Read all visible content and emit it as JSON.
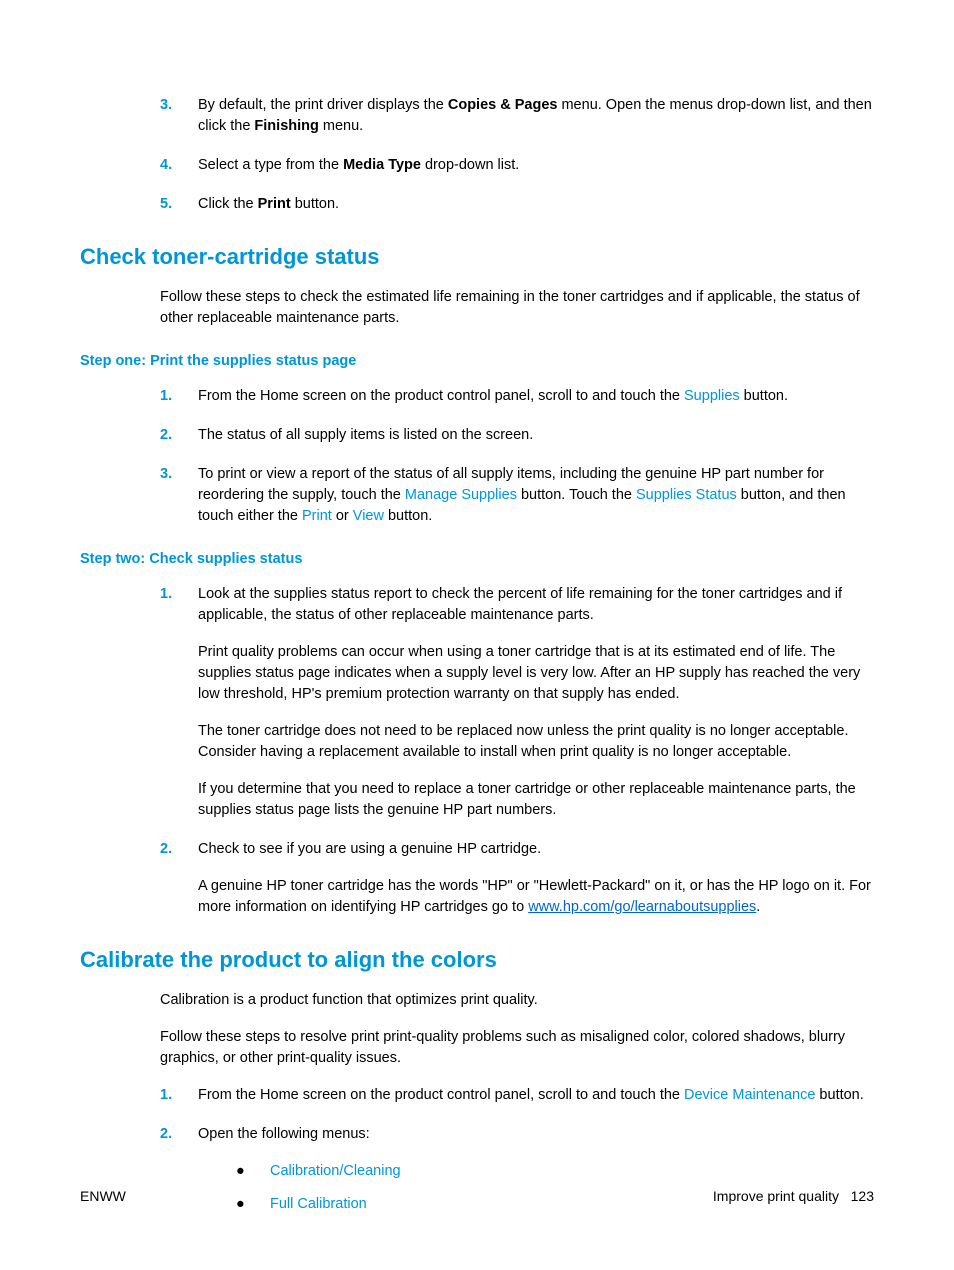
{
  "steps_top": {
    "3": {
      "num": "3.",
      "pre1": "By default, the print driver displays the ",
      "bold1": "Copies & Pages",
      "mid1": " menu. Open the menus drop-down list, and then click the ",
      "bold2": "Finishing",
      "post1": " menu."
    },
    "4": {
      "num": "4.",
      "pre1": "Select a type from the ",
      "bold1": "Media Type",
      "post1": " drop-down list."
    },
    "5": {
      "num": "5.",
      "pre1": "Click the ",
      "bold1": "Print",
      "post1": " button."
    }
  },
  "section1": {
    "title": "Check toner-cartridge status",
    "intro": "Follow these steps to check the estimated life remaining in the toner cartridges and if applicable, the status of other replaceable maintenance parts.",
    "step1_title": "Step one: Print the supplies status page",
    "step1": {
      "1": {
        "num": "1.",
        "pre": "From the Home screen on the product control panel, scroll to and touch the ",
        "ui": "Supplies",
        "post": " button."
      },
      "2": {
        "num": "2.",
        "text": "The status of all supply items is listed on the screen."
      },
      "3": {
        "num": "3.",
        "pre": "To print or view a report of the status of all supply items, including the genuine HP part number for reordering the supply, touch the ",
        "ui1": "Manage Supplies",
        "mid1": " button. Touch the ",
        "ui2": "Supplies Status",
        "mid2": " button, and then touch either the ",
        "ui3": "Print",
        "mid3": " or ",
        "ui4": "View",
        "post": " button."
      }
    },
    "step2_title": "Step two: Check supplies status",
    "step2": {
      "1": {
        "num": "1.",
        "p1": "Look at the supplies status report to check the percent of life remaining for the toner cartridges and if applicable, the status of other replaceable maintenance parts.",
        "p2": "Print quality problems can occur when using a toner cartridge that is at its estimated end of life. The supplies status page indicates when a supply level is very low. After an HP supply has reached the very low threshold, HP's premium protection warranty on that supply has ended.",
        "p3": "The toner cartridge does not need to be replaced now unless the print quality is no longer acceptable. Consider having a replacement available to install when print quality is no longer acceptable.",
        "p4": "If you determine that you need to replace a toner cartridge or other replaceable maintenance parts, the supplies status page lists the genuine HP part numbers."
      },
      "2": {
        "num": "2.",
        "p1": "Check to see if you are using a genuine HP cartridge.",
        "p2_pre": "A genuine HP toner cartridge has the words \"HP\" or \"Hewlett-Packard\" on it, or has the HP logo on it. For more information on identifying HP cartridges go to ",
        "p2_link": "www.hp.com/go/learnaboutsupplies",
        "p2_post": "."
      }
    }
  },
  "section2": {
    "title": "Calibrate the product to align the colors",
    "intro1": "Calibration is a product function that optimizes print quality.",
    "intro2": "Follow these steps to resolve print print-quality problems such as misaligned color, colored shadows, blurry graphics, or other print-quality issues.",
    "1": {
      "num": "1.",
      "pre": "From the Home screen on the product control panel, scroll to and touch the ",
      "ui": "Device Maintenance",
      "post": " button."
    },
    "2": {
      "num": "2.",
      "text": "Open the following menus:",
      "b1": "Calibration/Cleaning",
      "b2": "Full Calibration"
    }
  },
  "footer": {
    "left": "ENWW",
    "right_label": "Improve print quality",
    "right_page": "123"
  }
}
